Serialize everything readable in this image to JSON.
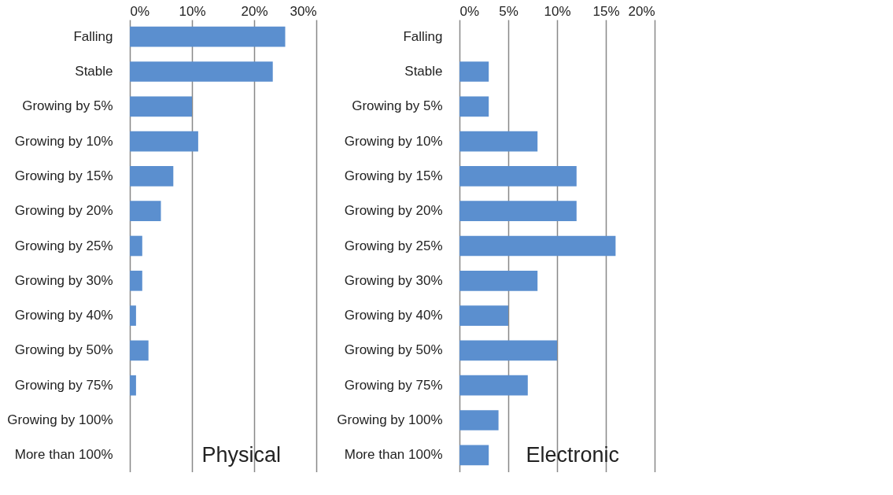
{
  "chart_data": [
    {
      "type": "bar",
      "orientation": "horizontal",
      "title": "Physical",
      "categories": [
        "Falling",
        "Stable",
        "Growing by 5%",
        "Growing by 10%",
        "Growing by 15%",
        "Growing by 20%",
        "Growing by 25%",
        "Growing by 30%",
        "Growing by 40%",
        "Growing by 50%",
        "Growing by 75%",
        "Growing by 100%",
        "More than 100%"
      ],
      "values": [
        25,
        23,
        10,
        11,
        7,
        5,
        2,
        2,
        1,
        3,
        1,
        0,
        0
      ],
      "color": "#5b8fcf",
      "xlim": [
        0,
        30
      ],
      "xticks": [
        {
          "value": 0,
          "label": "0%"
        },
        {
          "value": 10,
          "label": "10%"
        },
        {
          "value": 20,
          "label": "20%"
        },
        {
          "value": 30,
          "label": "30%"
        }
      ],
      "grid": "x"
    },
    {
      "type": "bar",
      "orientation": "horizontal",
      "title": "Electronic",
      "categories": [
        "Falling",
        "Stable",
        "Growing by 5%",
        "Growing by 10%",
        "Growing by 15%",
        "Growing by 20%",
        "Growing by 25%",
        "Growing by 30%",
        "Growing by 40%",
        "Growing by 50%",
        "Growing by 75%",
        "Growing by 100%",
        "More than 100%"
      ],
      "values": [
        0,
        3,
        3,
        8,
        12,
        12,
        16,
        8,
        5,
        10,
        7,
        4,
        3
      ],
      "color": "#5b8fcf",
      "xlim": [
        0,
        20
      ],
      "xticks": [
        {
          "value": 0,
          "label": "0%"
        },
        {
          "value": 5,
          "label": "5%"
        },
        {
          "value": 10,
          "label": "10%"
        },
        {
          "value": 15,
          "label": "15%"
        },
        {
          "value": 20,
          "label": "20%"
        }
      ],
      "grid": "x"
    }
  ]
}
